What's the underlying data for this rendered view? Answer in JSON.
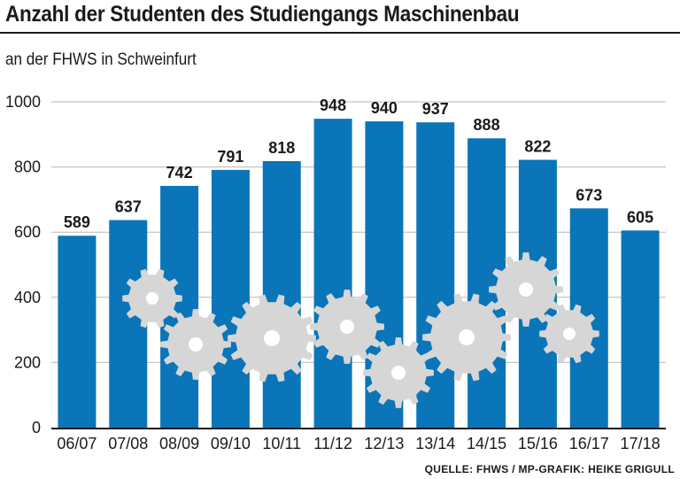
{
  "header": {
    "title": "Anzahl der Studenten des Studiengangs Maschinenbau",
    "subtitle": "an der FHWS in Schweinfurt"
  },
  "footer": {
    "source": "QUELLE: FHWS / MP-GRAFIK: HEIKE GRIGULL"
  },
  "colors": {
    "bar": "#0a75b8",
    "gear": "#d6d6d6",
    "text": "#1a1a1a",
    "gridline": "#b8b8b8"
  },
  "decoration": {
    "icon": "gear-icon"
  },
  "chart_data": {
    "type": "bar",
    "title": "Anzahl der Studenten des Studiengangs Maschinenbau",
    "subtitle": "an der FHWS in Schweinfurt",
    "xlabel": "",
    "ylabel": "",
    "categories": [
      "06/07",
      "07/08",
      "08/09",
      "09/10",
      "10/11",
      "11/12",
      "12/13",
      "13/14",
      "14/15",
      "15/16",
      "16/17",
      "17/18"
    ],
    "values": [
      589,
      637,
      742,
      791,
      818,
      948,
      940,
      937,
      888,
      822,
      673,
      605
    ],
    "ylim": [
      0,
      1000
    ],
    "yticks": [
      0,
      200,
      400,
      600,
      800,
      1000
    ],
    "grid": true,
    "data_labels": true,
    "legend": "none"
  }
}
